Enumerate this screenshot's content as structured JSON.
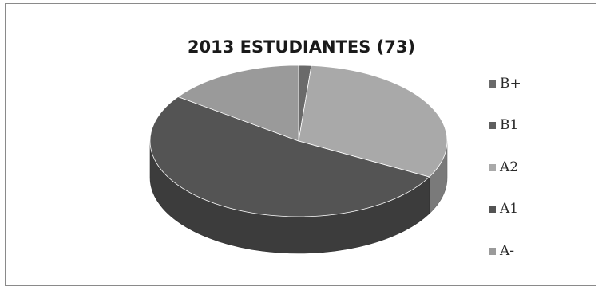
{
  "chart_data": {
    "type": "pie",
    "title": "2013 ESTUDIANTES (73)",
    "categories": [
      "B+",
      "B1",
      "A2",
      "A1",
      "A-"
    ],
    "values": [
      1,
      0,
      23,
      38,
      11
    ],
    "units": "estudiantes",
    "legend_position": "right",
    "colors": [
      "#6a6a6a",
      "#5f5f5f",
      "#a9a9a9",
      "#545454",
      "#9a9a9a"
    ],
    "style": "3d"
  }
}
